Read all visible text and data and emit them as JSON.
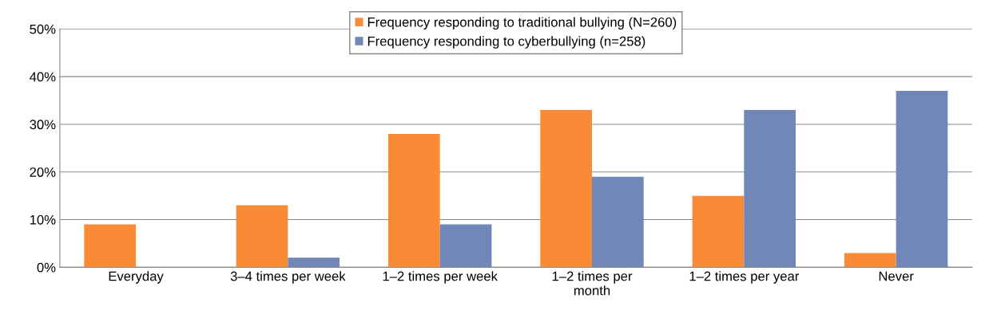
{
  "chart_data": {
    "type": "bar",
    "categories": [
      "Everyday",
      "3–4 times per week",
      "1–2 times per week",
      "1–2 times per\nmonth",
      "1–2 times per year",
      "Never"
    ],
    "series": [
      {
        "name": "Frequency responding to traditional bullying (N=260)",
        "color": "#f98b36",
        "values": [
          9,
          13,
          28,
          33,
          15,
          3
        ]
      },
      {
        "name": "Frequency responding to cyberbullying (n=258)",
        "color": "#7087b8",
        "values": [
          0,
          2,
          9,
          19,
          33,
          37
        ]
      }
    ],
    "ylim": [
      0,
      50
    ],
    "yticks": [
      {
        "value": 0,
        "label": "0%"
      },
      {
        "value": 10,
        "label": "10%"
      },
      {
        "value": 20,
        "label": "20%"
      },
      {
        "value": 30,
        "label": "30%"
      },
      {
        "value": 40,
        "label": "40%"
      },
      {
        "value": 50,
        "label": "50%"
      }
    ],
    "grid": "y",
    "legend": "top"
  }
}
